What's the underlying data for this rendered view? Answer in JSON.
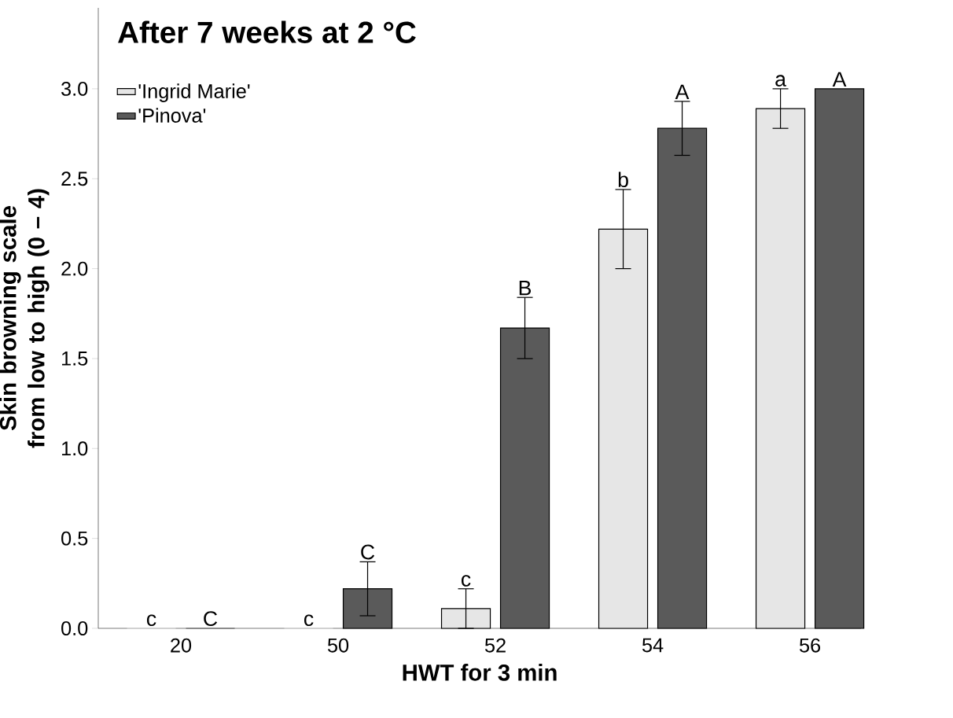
{
  "chart_data": {
    "type": "bar",
    "title": "After 7 weeks at 2 °C",
    "xlabel": "HWT for 3 min",
    "ylabel": "Skin browning scale from low to high (0 – 4)",
    "categories": [
      "20",
      "50",
      "52",
      "54",
      "56"
    ],
    "series": [
      {
        "name": "'Ingrid Marie'",
        "color": "#e6e6e6",
        "values": [
          0,
          0,
          0.11,
          2.22,
          2.89
        ],
        "errors": [
          null,
          null,
          0.11,
          0.22,
          0.11
        ],
        "value_labels": [
          "c",
          "c",
          "c",
          "b",
          "a"
        ]
      },
      {
        "name": "'Pinova'",
        "color": "#5a5a5a",
        "values": [
          0,
          0.22,
          1.67,
          2.78,
          3.0
        ],
        "errors": [
          null,
          0.15,
          0.17,
          0.15,
          null
        ],
        "value_labels": [
          "C",
          "C",
          "B",
          "A",
          "A"
        ]
      }
    ],
    "ylim": [
      0,
      3.45
    ],
    "yticks": [
      {
        "value": 0,
        "label": "0.0"
      },
      {
        "value": 0.5,
        "label": "0.5"
      },
      {
        "value": 1,
        "label": "1.0"
      },
      {
        "value": 1.5,
        "label": "1.5"
      },
      {
        "value": 2,
        "label": "2.0"
      },
      {
        "value": 2.5,
        "label": "2.5"
      },
      {
        "value": 3,
        "label": "3.0"
      }
    ],
    "grid": false,
    "legend": "top left"
  }
}
